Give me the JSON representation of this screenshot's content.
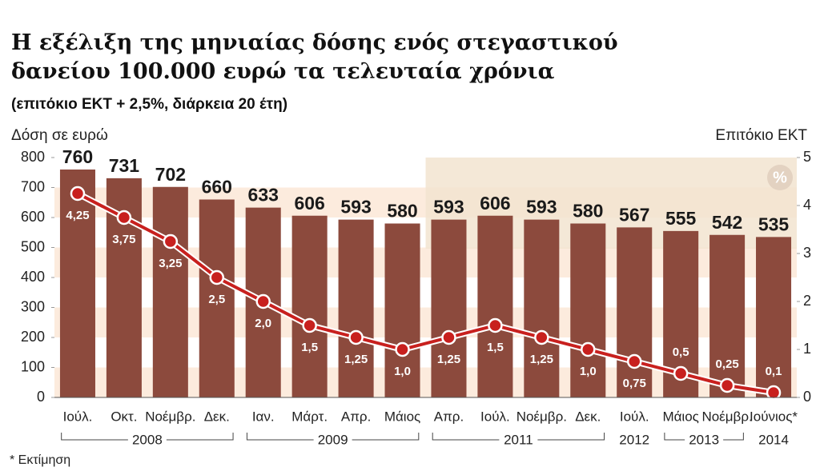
{
  "chart_data": {
    "type": "bar",
    "title_lines": [
      "Η εξέλιξη της μηνιαίας δόσης ενός στεγαστικού",
      "δανείου 100.000 ευρώ τα τελευταία χρόνια"
    ],
    "subtitle": "(επιτόκιο ΕΚΤ + 2,5%, διάρκεια 20 έτη)",
    "y_label": "Δόση σε ευρώ",
    "y2_label": "Επιτόκιο ΕΚΤ",
    "y2_unit": "%",
    "footnote": "* Εκτίμηση",
    "categories": [
      "Ιούλ.",
      "Οκτ.",
      "Νοέμβρ.",
      "Δεκ.",
      "Ιαν.",
      "Μάρτ.",
      "Απρ.",
      "Μάιος",
      "Απρ.",
      "Ιούλ.",
      "Νοέμβρ.",
      "Δεκ.",
      "Ιούλ.",
      "Μάιος",
      "Νοέμβρ.",
      "Ιούνιος*"
    ],
    "x_years": [
      "2008",
      "2008",
      "2008",
      "2008",
      "2009",
      "2009",
      "2009",
      "2009",
      "2011",
      "2011",
      "2011",
      "2011",
      "2012",
      "2013",
      "2013",
      "2014"
    ],
    "series": [
      {
        "type": "bar",
        "color": "#8c4a3d",
        "values": [
          760,
          731,
          702,
          660,
          633,
          606,
          593,
          580,
          593,
          606,
          593,
          580,
          567,
          555,
          542,
          535
        ]
      },
      {
        "type": "line",
        "axis": "y2",
        "color": "#c8201e",
        "values": [
          4.25,
          3.75,
          3.25,
          2.5,
          2.0,
          1.5,
          1.25,
          1.0,
          1.25,
          1.5,
          1.25,
          1.0,
          0.75,
          0.5,
          0.25,
          0.1
        ],
        "value_labels": [
          "4,25",
          "3,75",
          "3,25",
          "2,5",
          "2,0",
          "1,5",
          "1,25",
          "1,0",
          "1,25",
          "1,5",
          "1,25",
          "1,0",
          "0,75",
          "0,5",
          "0,25",
          "0,1"
        ]
      }
    ],
    "ylim": [
      0,
      800
    ],
    "yticks": [
      0,
      100,
      200,
      300,
      400,
      500,
      600,
      700,
      800
    ],
    "y2lim": [
      0,
      5
    ],
    "y2ticks": [
      0,
      1,
      2,
      3,
      4,
      5
    ]
  }
}
